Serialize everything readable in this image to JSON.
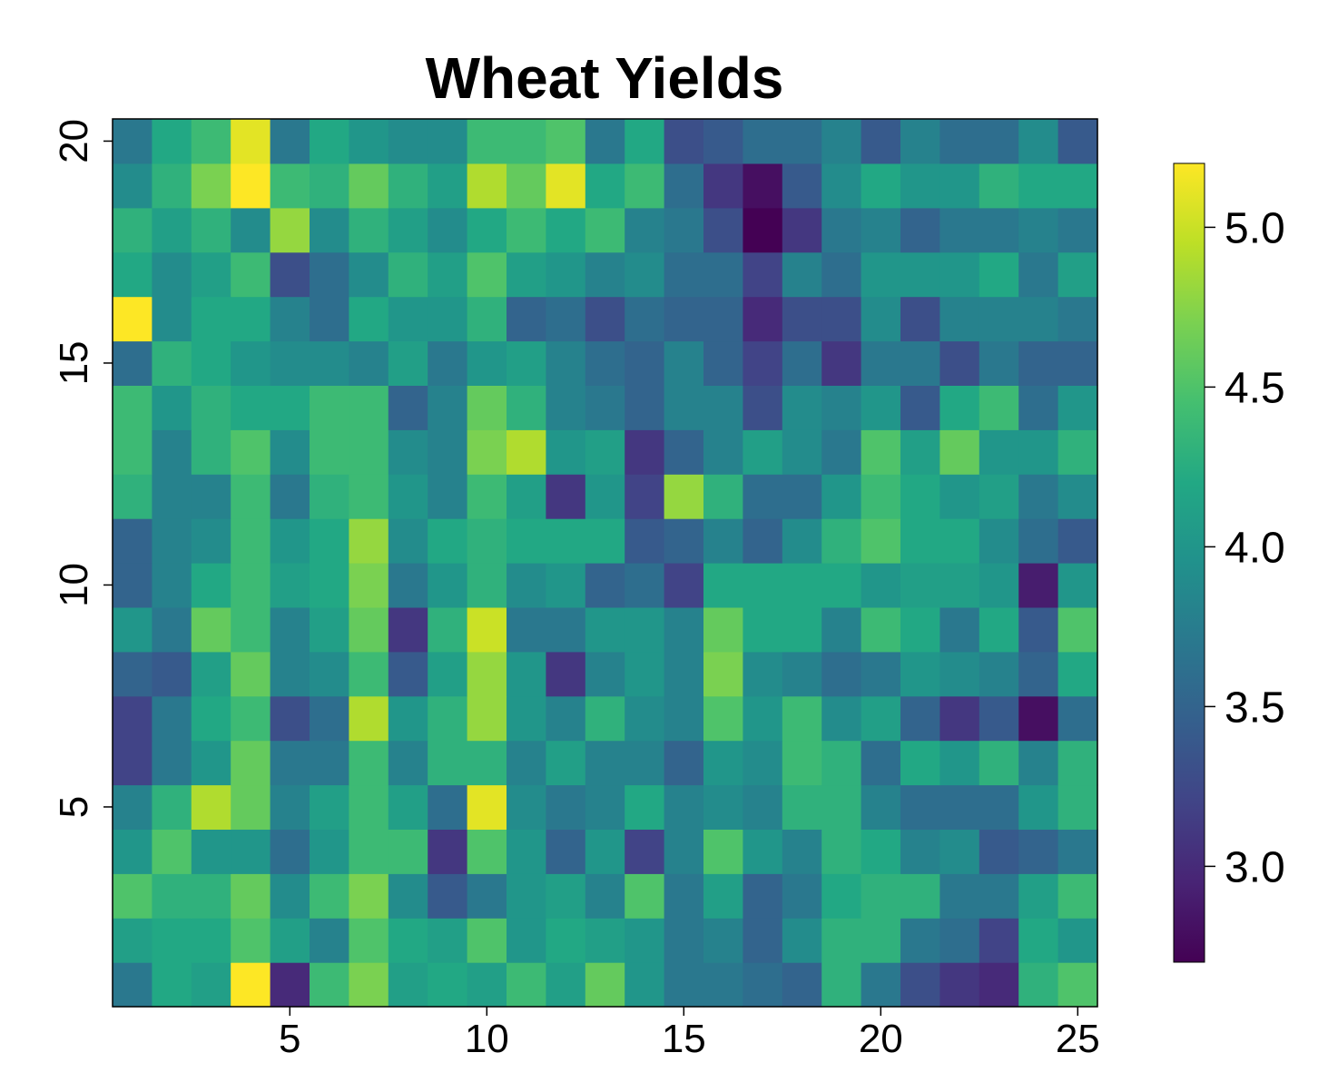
{
  "chart_data": {
    "type": "heatmap",
    "title": "Wheat Yields",
    "xlabel": "",
    "ylabel": "",
    "x": [
      1,
      2,
      3,
      4,
      5,
      6,
      7,
      8,
      9,
      10,
      11,
      12,
      13,
      14,
      15,
      16,
      17,
      18,
      19,
      20,
      21,
      22,
      23,
      24,
      25
    ],
    "y": [
      1,
      2,
      3,
      4,
      5,
      6,
      7,
      8,
      9,
      10,
      11,
      12,
      13,
      14,
      15,
      16,
      17,
      18,
      19,
      20
    ],
    "xlim": [
      0.5,
      25.5
    ],
    "ylim": [
      0.5,
      20.5
    ],
    "x_ticks": [
      5,
      10,
      15,
      20,
      25
    ],
    "y_ticks": [
      5,
      10,
      15,
      20
    ],
    "colorscale": "viridis",
    "color_range": [
      2.7,
      5.2
    ],
    "colorbar_ticks": [
      3.0,
      3.5,
      4.0,
      4.5,
      5.0
    ],
    "colorbar_tick_labels": [
      "3.0",
      "3.5",
      "4.0",
      "4.5",
      "5.0"
    ],
    "grid": false,
    "legend": "right",
    "values": [
      [
        3.7,
        4.2,
        4.1,
        5.2,
        3.0,
        4.4,
        4.7,
        4.1,
        4.2,
        4.1,
        4.4,
        4.1,
        4.6,
        4.0,
        3.7,
        3.7,
        3.6,
        3.5,
        4.3,
        3.7,
        3.3,
        3.1,
        3.0,
        4.3,
        4.5
      ],
      [
        4.1,
        4.2,
        4.2,
        4.5,
        4.1,
        3.8,
        4.5,
        4.2,
        4.1,
        4.5,
        4.0,
        4.2,
        4.1,
        4.0,
        3.7,
        3.8,
        3.5,
        3.9,
        4.3,
        4.3,
        3.7,
        3.6,
        3.2,
        4.2,
        4.0
      ],
      [
        4.5,
        4.3,
        4.3,
        4.6,
        3.9,
        4.4,
        4.7,
        3.9,
        3.4,
        3.7,
        4.0,
        4.1,
        3.8,
        4.5,
        3.7,
        4.1,
        3.5,
        3.7,
        4.2,
        4.3,
        4.3,
        3.7,
        3.7,
        4.1,
        4.4
      ],
      [
        4.0,
        4.5,
        4.0,
        4.0,
        3.6,
        4.0,
        4.4,
        4.4,
        3.1,
        4.5,
        4.0,
        3.5,
        4.0,
        3.2,
        3.8,
        4.5,
        4.0,
        3.8,
        4.3,
        4.2,
        3.8,
        3.9,
        3.4,
        3.5,
        3.7
      ],
      [
        3.8,
        4.3,
        4.9,
        4.6,
        3.8,
        4.1,
        4.4,
        4.1,
        3.6,
        5.1,
        3.9,
        3.7,
        3.8,
        4.2,
        3.8,
        3.9,
        3.8,
        4.3,
        4.3,
        3.8,
        3.6,
        3.6,
        3.6,
        4.0,
        4.3
      ],
      [
        3.2,
        3.7,
        4.0,
        4.6,
        3.7,
        3.7,
        4.4,
        3.8,
        4.3,
        4.3,
        3.8,
        4.1,
        3.8,
        3.8,
        3.5,
        4.0,
        3.9,
        4.4,
        4.3,
        3.6,
        4.2,
        4.0,
        4.3,
        3.8,
        4.3
      ],
      [
        3.2,
        3.7,
        4.2,
        4.4,
        3.3,
        3.6,
        4.9,
        4.0,
        4.3,
        4.8,
        4.0,
        3.8,
        4.3,
        3.9,
        3.8,
        4.5,
        4.0,
        4.4,
        3.9,
        4.1,
        3.5,
        3.1,
        3.4,
        2.8,
        3.6
      ],
      [
        3.5,
        3.4,
        4.1,
        4.6,
        3.8,
        3.9,
        4.4,
        3.4,
        4.1,
        4.8,
        4.0,
        3.1,
        3.8,
        4.0,
        3.8,
        4.7,
        3.9,
        3.8,
        3.6,
        3.7,
        4.0,
        3.9,
        3.8,
        3.5,
        4.2
      ],
      [
        4.0,
        3.7,
        4.6,
        4.4,
        3.8,
        4.1,
        4.6,
        3.1,
        4.3,
        5.0,
        3.7,
        3.7,
        4.0,
        4.0,
        3.8,
        4.6,
        4.2,
        4.2,
        3.8,
        4.4,
        4.2,
        3.7,
        4.2,
        3.4,
        4.5
      ],
      [
        3.5,
        3.8,
        4.2,
        4.4,
        4.1,
        4.2,
        4.7,
        3.7,
        4.0,
        4.3,
        3.9,
        4.0,
        3.5,
        3.6,
        3.2,
        4.2,
        4.2,
        4.2,
        4.2,
        4.0,
        4.1,
        4.1,
        4.0,
        2.9,
        4.0
      ],
      [
        3.5,
        3.8,
        3.9,
        4.4,
        4.0,
        4.2,
        4.8,
        3.9,
        4.2,
        4.3,
        4.2,
        4.2,
        4.2,
        3.4,
        3.5,
        3.8,
        3.5,
        3.9,
        4.3,
        4.5,
        4.2,
        4.2,
        3.9,
        3.6,
        3.4
      ],
      [
        4.3,
        3.8,
        3.8,
        4.4,
        3.7,
        4.3,
        4.4,
        4.0,
        3.8,
        4.4,
        4.1,
        3.1,
        4.0,
        3.2,
        4.8,
        4.3,
        3.6,
        3.6,
        4.0,
        4.4,
        4.2,
        4.0,
        4.1,
        3.7,
        3.9
      ],
      [
        4.4,
        3.8,
        4.3,
        4.5,
        3.9,
        4.4,
        4.4,
        3.9,
        3.8,
        4.7,
        4.9,
        4.0,
        4.1,
        3.1,
        3.5,
        3.8,
        4.1,
        3.9,
        3.7,
        4.5,
        4.1,
        4.6,
        4.0,
        4.0,
        4.3
      ],
      [
        4.4,
        4.0,
        4.3,
        4.2,
        4.2,
        4.4,
        4.4,
        3.5,
        3.8,
        4.6,
        4.3,
        3.8,
        3.7,
        3.5,
        3.8,
        3.8,
        3.3,
        3.9,
        3.8,
        4.0,
        3.4,
        4.2,
        4.4,
        3.6,
        4.0
      ],
      [
        3.6,
        4.3,
        4.2,
        4.0,
        3.9,
        3.9,
        3.8,
        4.1,
        3.7,
        4.0,
        4.1,
        3.8,
        3.6,
        3.5,
        3.8,
        3.5,
        3.2,
        3.6,
        3.1,
        3.7,
        3.7,
        3.3,
        3.7,
        3.5,
        3.5
      ],
      [
        5.2,
        3.9,
        4.2,
        4.2,
        3.8,
        3.6,
        4.2,
        4.0,
        4.0,
        4.3,
        3.5,
        3.6,
        3.3,
        3.6,
        3.5,
        3.5,
        3.0,
        3.3,
        3.3,
        3.9,
        3.3,
        3.8,
        3.8,
        3.8,
        3.7
      ],
      [
        4.2,
        3.9,
        4.1,
        4.4,
        3.3,
        3.6,
        3.9,
        4.3,
        4.1,
        4.5,
        4.1,
        4.0,
        3.8,
        3.9,
        3.6,
        3.6,
        3.2,
        3.8,
        3.6,
        4.0,
        4.0,
        4.0,
        4.2,
        3.7,
        4.1
      ],
      [
        4.3,
        4.1,
        4.3,
        3.9,
        4.8,
        3.9,
        4.3,
        4.1,
        3.9,
        4.2,
        4.4,
        4.2,
        4.4,
        3.8,
        3.7,
        3.3,
        2.7,
        3.1,
        3.7,
        3.8,
        3.5,
        3.7,
        3.7,
        3.8,
        3.7
      ],
      [
        3.9,
        4.3,
        4.7,
        5.2,
        4.4,
        4.3,
        4.6,
        4.3,
        4.1,
        4.9,
        4.6,
        5.1,
        4.2,
        4.4,
        3.6,
        3.1,
        2.8,
        3.4,
        3.9,
        4.2,
        4.0,
        4.0,
        4.3,
        4.2,
        4.2
      ],
      [
        3.7,
        4.2,
        4.4,
        5.1,
        3.7,
        4.2,
        4.0,
        3.9,
        3.9,
        4.4,
        4.4,
        4.5,
        3.7,
        4.2,
        3.3,
        3.4,
        3.6,
        3.6,
        3.8,
        3.4,
        3.8,
        3.6,
        3.6,
        3.9,
        3.4
      ]
    ]
  }
}
